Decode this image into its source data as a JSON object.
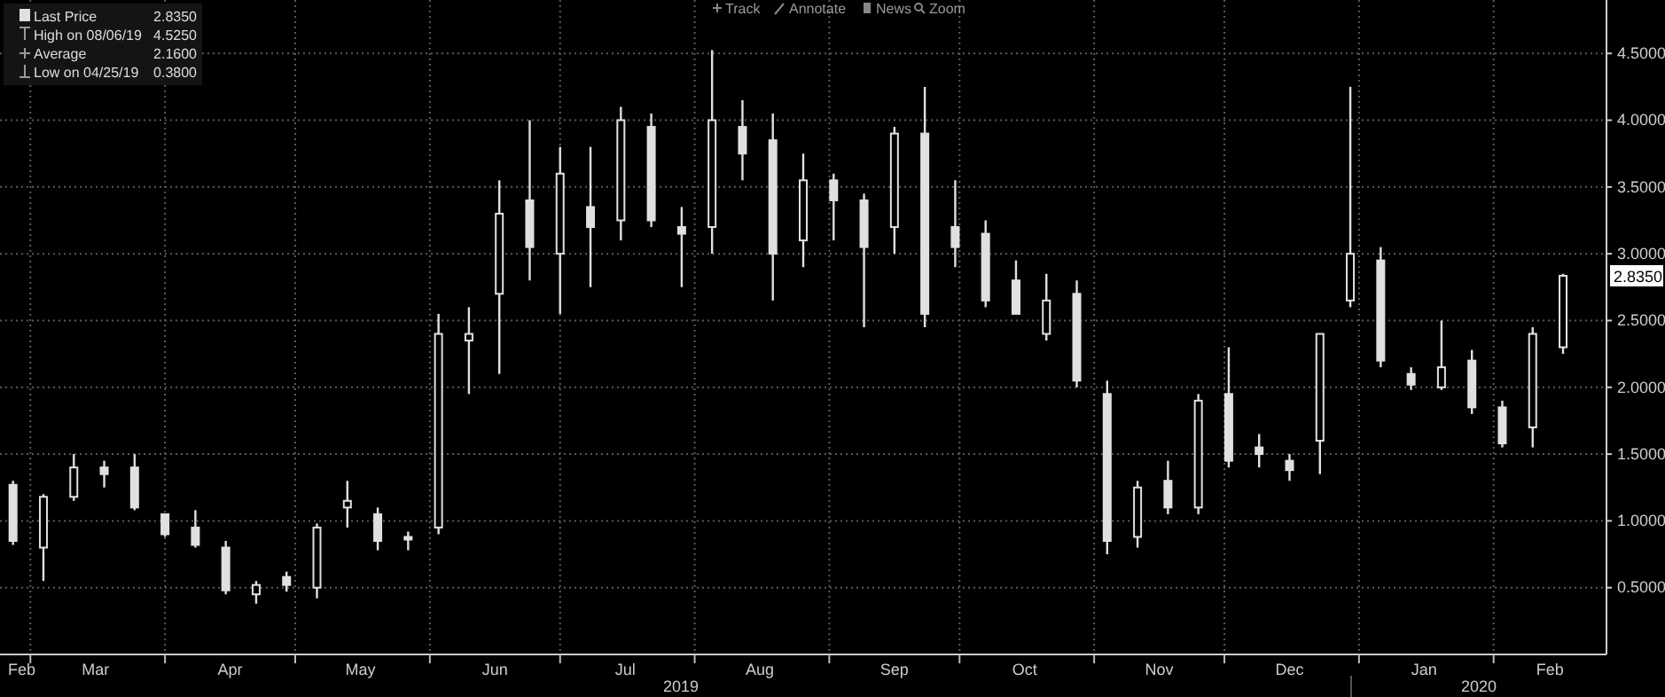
{
  "chart_data": {
    "type": "candlestick",
    "color": "#e0e0e0",
    "x": [
      "2019-02-25",
      "2019-03-04",
      "2019-03-11",
      "2019-03-18",
      "2019-03-25",
      "2019-04-01",
      "2019-04-08",
      "2019-04-15",
      "2019-04-22",
      "2019-04-29",
      "2019-05-06",
      "2019-05-13",
      "2019-05-20",
      "2019-05-27",
      "2019-06-03",
      "2019-06-10",
      "2019-06-17",
      "2019-06-24",
      "2019-07-01",
      "2019-07-08",
      "2019-07-15",
      "2019-07-22",
      "2019-07-29",
      "2019-08-05",
      "2019-08-12",
      "2019-08-19",
      "2019-08-26",
      "2019-09-02",
      "2019-09-09",
      "2019-09-16",
      "2019-09-23",
      "2019-09-30",
      "2019-10-07",
      "2019-10-14",
      "2019-10-21",
      "2019-10-28",
      "2019-11-04",
      "2019-11-11",
      "2019-11-18",
      "2019-11-25",
      "2019-12-02",
      "2019-12-09",
      "2019-12-16",
      "2019-12-23",
      "2019-12-30",
      "2020-01-06",
      "2020-01-13",
      "2020-01-20",
      "2020-01-27",
      "2020-02-03",
      "2020-02-10",
      "2020-02-17"
    ],
    "ohlc": [
      [
        1.27,
        1.3,
        0.82,
        0.85
      ],
      [
        0.8,
        1.2,
        0.55,
        1.18
      ],
      [
        1.18,
        1.5,
        1.15,
        1.4
      ],
      [
        1.4,
        1.45,
        1.25,
        1.35
      ],
      [
        1.4,
        1.5,
        1.08,
        1.1
      ],
      [
        1.05,
        1.05,
        0.88,
        0.9
      ],
      [
        0.95,
        1.08,
        0.8,
        0.82
      ],
      [
        0.8,
        0.85,
        0.45,
        0.48
      ],
      [
        0.45,
        0.55,
        0.38,
        0.52
      ],
      [
        0.58,
        0.62,
        0.47,
        0.52
      ],
      [
        0.5,
        0.98,
        0.42,
        0.95
      ],
      [
        1.1,
        1.3,
        0.95,
        1.15
      ],
      [
        1.05,
        1.1,
        0.78,
        0.85
      ],
      [
        0.88,
        0.92,
        0.78,
        0.86
      ],
      [
        0.95,
        2.55,
        0.9,
        2.4
      ],
      [
        2.35,
        2.6,
        1.95,
        2.4
      ],
      [
        2.7,
        3.55,
        2.1,
        3.3
      ],
      [
        3.4,
        4.0,
        2.8,
        3.05
      ],
      [
        3.0,
        3.8,
        2.55,
        3.6
      ],
      [
        3.35,
        3.8,
        2.75,
        3.2
      ],
      [
        3.25,
        4.1,
        3.1,
        4.0
      ],
      [
        3.95,
        4.05,
        3.2,
        3.25
      ],
      [
        3.2,
        3.35,
        2.75,
        3.15
      ],
      [
        3.2,
        4.525,
        3.0,
        4.0
      ],
      [
        3.95,
        4.15,
        3.55,
        3.75
      ],
      [
        3.85,
        4.05,
        2.65,
        3.0
      ],
      [
        3.1,
        3.75,
        2.9,
        3.55
      ],
      [
        3.55,
        3.6,
        3.1,
        3.4
      ],
      [
        3.4,
        3.45,
        2.45,
        3.05
      ],
      [
        3.2,
        3.95,
        3.0,
        3.9
      ],
      [
        3.9,
        4.25,
        2.45,
        2.55
      ],
      [
        3.2,
        3.55,
        2.9,
        3.05
      ],
      [
        3.15,
        3.25,
        2.6,
        2.65
      ],
      [
        2.8,
        2.95,
        2.55,
        2.55
      ],
      [
        2.4,
        2.85,
        2.35,
        2.65
      ],
      [
        2.7,
        2.8,
        2.0,
        2.05
      ],
      [
        1.95,
        2.05,
        0.75,
        0.85
      ],
      [
        0.88,
        1.3,
        0.8,
        1.25
      ],
      [
        1.3,
        1.45,
        1.05,
        1.1
      ],
      [
        1.1,
        1.95,
        1.05,
        1.9
      ],
      [
        1.95,
        2.3,
        1.4,
        1.45
      ],
      [
        1.55,
        1.65,
        1.4,
        1.5
      ],
      [
        1.45,
        1.5,
        1.3,
        1.38
      ],
      [
        1.6,
        2.4,
        1.35,
        2.4
      ],
      [
        2.65,
        4.25,
        2.6,
        3.0
      ],
      [
        2.95,
        3.05,
        2.15,
        2.2
      ],
      [
        2.1,
        2.15,
        1.98,
        2.02
      ],
      [
        2.0,
        2.5,
        1.98,
        2.15
      ],
      [
        2.2,
        2.28,
        1.8,
        1.85
      ],
      [
        1.85,
        1.9,
        1.55,
        1.58
      ],
      [
        1.7,
        2.45,
        1.55,
        2.4
      ],
      [
        2.3,
        2.85,
        2.25,
        2.835
      ]
    ],
    "xlim": [
      "2019-02-22",
      "2020-02-27"
    ],
    "xticks": [
      {
        "value": "2019-02-27",
        "label": "Feb"
      },
      {
        "value": "2019-03-01",
        "label": null
      },
      {
        "value": "2019-03-16",
        "label": "Mar"
      },
      {
        "value": "2019-04-01",
        "label": null
      },
      {
        "value": "2019-04-16",
        "label": "Apr"
      },
      {
        "value": "2019-05-01",
        "label": null
      },
      {
        "value": "2019-05-16",
        "label": "May"
      },
      {
        "value": "2019-06-01",
        "label": null
      },
      {
        "value": "2019-06-16",
        "label": "Jun"
      },
      {
        "value": "2019-07-01",
        "label": null
      },
      {
        "value": "2019-07-16",
        "label": "Jul"
      },
      {
        "value": "2019-08-01",
        "label": null
      },
      {
        "value": "2019-08-16",
        "label": "Aug"
      },
      {
        "value": "2019-09-01",
        "label": null
      },
      {
        "value": "2019-09-16",
        "label": "Sep"
      },
      {
        "value": "2019-10-01",
        "label": null
      },
      {
        "value": "2019-10-16",
        "label": "Oct"
      },
      {
        "value": "2019-11-01",
        "label": null
      },
      {
        "value": "2019-11-16",
        "label": "Nov"
      },
      {
        "value": "2019-12-01",
        "label": null
      },
      {
        "value": "2019-12-16",
        "label": "Dec"
      },
      {
        "value": "2020-01-01",
        "label": null
      },
      {
        "value": "2020-01-16",
        "label": "Jan"
      },
      {
        "value": "2020-02-01",
        "label": null
      },
      {
        "value": "2020-02-14",
        "label": "Feb"
      }
    ],
    "ylim": [
      0,
      4.9
    ],
    "yticks": [
      {
        "value": 0.5,
        "label": "0.5000"
      },
      {
        "value": 1,
        "label": "1.0000"
      },
      {
        "value": 1.5,
        "label": "1.5000"
      },
      {
        "value": 2,
        "label": "2.0000"
      },
      {
        "value": 2.5,
        "label": "2.5000"
      },
      {
        "value": 3,
        "label": "3.0000"
      },
      {
        "value": 3.5,
        "label": "3.5000"
      },
      {
        "value": 4,
        "label": "4.0000"
      },
      {
        "value": 4.5,
        "label": "4.5000"
      }
    ],
    "grid": true,
    "annotations": [
      "Last Price",
      "2.8350",
      "High on 08/06/19",
      "4.5250",
      "Average",
      "2.1600",
      "Low on 04/25/19",
      "0.3800",
      "Track",
      "Annotate",
      "News",
      "Zoom",
      "2019",
      "2020",
      {
        "text": "2.8350",
        "y": 2.835
      }
    ]
  }
}
